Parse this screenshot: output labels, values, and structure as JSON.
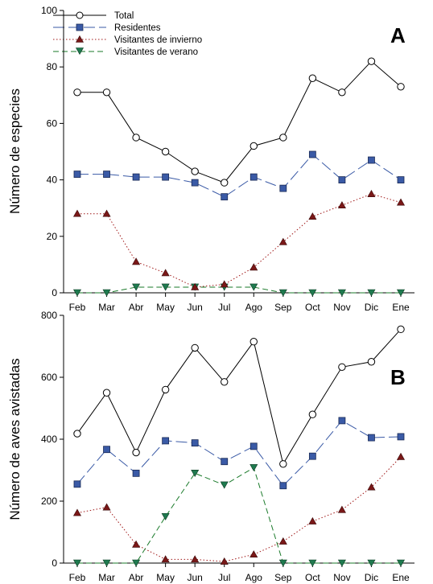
{
  "colors": {
    "total": "#000000",
    "residentes": "#3a5aa6",
    "invierno_line": "#a01818",
    "invierno_marker": "#7a1818",
    "verano_line": "#1a7a2a",
    "verano_marker": "#1f7a4f"
  },
  "legend": {
    "placement": "top-left",
    "items": [
      {
        "key": "total",
        "label": "Total"
      },
      {
        "key": "residentes",
        "label": "Residentes"
      },
      {
        "key": "invierno",
        "label": "Visitantes de invierno"
      },
      {
        "key": "verano",
        "label": "Visitantes de verano"
      }
    ]
  },
  "chart_data": [
    {
      "type": "line",
      "panel": "A",
      "ylabel": "Número de especies",
      "xlabel": "",
      "ylim": [
        0,
        100
      ],
      "yticks": [
        0,
        20,
        40,
        60,
        80,
        100
      ],
      "grid": false,
      "categories": [
        "Feb",
        "Mar",
        "Abr",
        "May",
        "Jun",
        "Jul",
        "Ago",
        "Sep",
        "Oct",
        "Nov",
        "Dic",
        "Ene"
      ],
      "series": [
        {
          "key": "total",
          "name": "Total",
          "values": [
            71,
            71,
            55,
            50,
            43,
            39,
            52,
            55,
            76,
            71,
            82,
            73
          ]
        },
        {
          "key": "residentes",
          "name": "Residentes",
          "values": [
            42,
            42,
            41,
            41,
            39,
            34,
            41,
            37,
            49,
            40,
            47,
            40
          ]
        },
        {
          "key": "invierno",
          "name": "Visitantes de invierno",
          "values": [
            28,
            28,
            11,
            7,
            2,
            3,
            9,
            18,
            27,
            31,
            35,
            32
          ]
        },
        {
          "key": "verano",
          "name": "Visitantes de verano",
          "values": [
            0,
            0,
            2,
            2,
            2,
            2,
            2,
            0,
            0,
            0,
            0,
            0
          ]
        }
      ]
    },
    {
      "type": "line",
      "panel": "B",
      "ylabel": "Número de aves avistadas",
      "xlabel": "",
      "ylim": [
        0,
        800
      ],
      "yticks": [
        0,
        200,
        400,
        600,
        800
      ],
      "grid": false,
      "categories": [
        "Feb",
        "Mar",
        "Abr",
        "May",
        "Jun",
        "Jul",
        "Ago",
        "Sep",
        "Oct",
        "Nov",
        "Dic",
        "Ene"
      ],
      "series": [
        {
          "key": "total",
          "name": "Total",
          "values": [
            418,
            550,
            357,
            560,
            695,
            585,
            715,
            320,
            480,
            633,
            650,
            755
          ]
        },
        {
          "key": "residentes",
          "name": "Residentes",
          "values": [
            255,
            367,
            290,
            395,
            388,
            328,
            377,
            250,
            345,
            460,
            405,
            408
          ]
        },
        {
          "key": "invierno",
          "name": "Visitantes de invierno",
          "values": [
            162,
            180,
            60,
            12,
            12,
            5,
            28,
            70,
            135,
            172,
            245,
            343
          ]
        },
        {
          "key": "verano",
          "name": "Visitantes de verano",
          "values": [
            0,
            0,
            0,
            150,
            290,
            252,
            308,
            0,
            0,
            0,
            0,
            0
          ]
        }
      ]
    }
  ]
}
